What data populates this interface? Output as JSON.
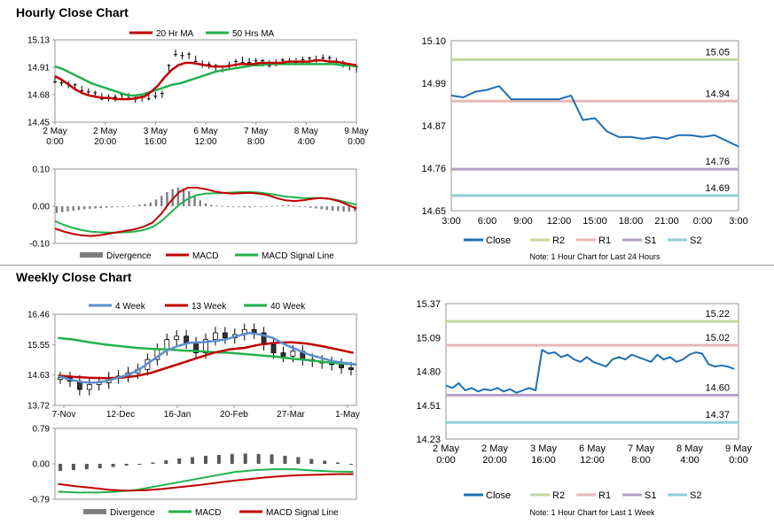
{
  "sections": {
    "hourly_title": "Hourly Close Chart",
    "weekly_title": "Weekly Close Chart"
  },
  "colors": {
    "ma20": "#c00000",
    "ma50": "#22b14c",
    "close": "#1f6fb2",
    "r2": "#c4d79b",
    "r1": "#e6b8b7",
    "s1": "#b1a0c7",
    "s2": "#92cddc",
    "wk4": "#5b8fd0",
    "wk13": "#c00000",
    "wk40": "#22b14c",
    "divergence": "#7f7f7f",
    "frame": "#969696"
  },
  "chart_data": [
    {
      "id": "hourly_price",
      "type": "line",
      "title": "Hourly Close Chart",
      "legend": [
        "20 Hr MA",
        "50 Hrs MA"
      ],
      "ylim": [
        14.45,
        15.13
      ],
      "yticks": [
        "15.13",
        "14.91",
        "14.68",
        "14.45"
      ],
      "xticks": [
        [
          "2 May",
          "0:00"
        ],
        [
          "2 May",
          "20:00"
        ],
        [
          "3 May",
          "16:00"
        ],
        [
          "6 May",
          "12:00"
        ],
        [
          "7 May",
          "8:00"
        ],
        [
          "8 May",
          "4:00"
        ],
        [
          "9 May",
          "0:00"
        ]
      ],
      "series": [
        {
          "name": "Close",
          "values": [
            14.8,
            14.78,
            14.76,
            14.74,
            14.72,
            14.7,
            14.68,
            14.66,
            14.65,
            14.65,
            14.66,
            14.66,
            14.64,
            14.65,
            14.66,
            14.67,
            14.68,
            14.9,
            15.02,
            15.0,
            15.0,
            14.97,
            14.93,
            14.92,
            14.9,
            14.89,
            14.92,
            14.94,
            14.96,
            14.95,
            14.95,
            14.94,
            14.93,
            14.94,
            14.95,
            14.95,
            14.95,
            14.96,
            14.96,
            14.97,
            14.98,
            14.97,
            14.95,
            14.93,
            14.91,
            14.89
          ]
        },
        {
          "name": "20 Hr MA",
          "values": [
            14.83,
            14.8,
            14.76,
            14.72,
            14.69,
            14.67,
            14.66,
            14.65,
            14.65,
            14.64,
            14.64,
            14.64,
            14.65,
            14.66,
            14.7,
            14.75,
            14.82,
            14.88,
            14.92,
            14.94,
            14.94,
            14.93,
            14.92,
            14.91,
            14.91,
            14.91,
            14.92,
            14.93,
            14.93,
            14.93,
            14.94,
            14.94,
            14.94,
            14.94,
            14.95,
            14.95,
            14.95,
            14.95,
            14.96,
            14.96,
            14.95,
            14.95,
            14.94,
            14.93,
            14.92
          ]
        },
        {
          "name": "50 Hrs MA",
          "values": [
            14.91,
            14.89,
            14.86,
            14.83,
            14.8,
            14.77,
            14.75,
            14.73,
            14.71,
            14.69,
            14.67,
            14.67,
            14.68,
            14.7,
            14.72,
            14.74,
            14.76,
            14.77,
            14.79,
            14.81,
            14.83,
            14.85,
            14.87,
            14.88,
            14.89,
            14.9,
            14.91,
            14.92,
            14.92,
            14.93,
            14.93,
            14.93,
            14.93,
            14.93,
            14.93,
            14.93,
            14.93,
            14.93,
            14.93,
            14.92,
            14.92,
            14.91
          ]
        }
      ]
    },
    {
      "id": "hourly_macd",
      "type": "line",
      "legend": [
        "Divergence",
        "MACD",
        "MACD Signal Line"
      ],
      "ylim": [
        -0.1,
        0.1
      ],
      "yticks": [
        "0.10",
        "0.00",
        "-0.10"
      ],
      "series": [
        {
          "name": "Divergence",
          "values": [
            -0.018,
            -0.016,
            -0.014,
            -0.012,
            -0.01,
            -0.008,
            -0.007,
            -0.006,
            -0.005,
            -0.004,
            -0.003,
            -0.002,
            -0.001,
            0.001,
            0.002,
            0.004,
            0.006,
            0.01,
            0.018,
            0.028,
            0.038,
            0.046,
            0.05,
            0.048,
            0.04,
            0.028,
            0.016,
            0.008,
            0.004,
            0.002,
            0.001,
            0.0,
            -0.001,
            -0.002,
            -0.003,
            -0.003,
            -0.002,
            -0.001,
            0.0,
            0.001,
            0.002,
            0.003,
            0.003,
            0.002,
            0.0,
            -0.002,
            -0.004,
            -0.006,
            -0.008,
            -0.01,
            -0.012,
            -0.013,
            -0.014,
            -0.014,
            -0.013
          ]
        },
        {
          "name": "MACD",
          "values": [
            -0.06,
            -0.068,
            -0.074,
            -0.078,
            -0.08,
            -0.078,
            -0.074,
            -0.07,
            -0.066,
            -0.062,
            -0.055,
            -0.044,
            -0.02,
            0.012,
            0.038,
            0.05,
            0.05,
            0.046,
            0.04,
            0.036,
            0.034,
            0.035,
            0.036,
            0.034,
            0.03,
            0.022,
            0.016,
            0.014,
            0.016,
            0.02,
            0.022,
            0.02,
            0.014,
            0.004,
            -0.006
          ]
        },
        {
          "name": "MACD Signal Line",
          "values": [
            -0.04,
            -0.05,
            -0.058,
            -0.064,
            -0.068,
            -0.07,
            -0.071,
            -0.071,
            -0.07,
            -0.068,
            -0.064,
            -0.056,
            -0.04,
            -0.018,
            0.004,
            0.02,
            0.03,
            0.034,
            0.035,
            0.036,
            0.037,
            0.038,
            0.038,
            0.037,
            0.034,
            0.03,
            0.026,
            0.024,
            0.022,
            0.022,
            0.022,
            0.02,
            0.016,
            0.01,
            0.004
          ]
        }
      ]
    },
    {
      "id": "hourly_pivot",
      "type": "line",
      "legend": [
        "Close",
        "R2",
        "R1",
        "S1",
        "S2"
      ],
      "note": "Note: 1 Hour Chart for Last 24 Hours",
      "ylim": [
        14.65,
        15.1
      ],
      "yticks": [
        "15.10",
        "14.99",
        "14.87",
        "14.76",
        "14.65"
      ],
      "xticks": [
        "3:00",
        "6:00",
        "9:00",
        "12:00",
        "15:00",
        "18:00",
        "21:00",
        "0:00",
        "3:00"
      ],
      "levels": [
        {
          "name": "R2",
          "value": 15.05,
          "label": "15.05"
        },
        {
          "name": "R1",
          "value": 14.94,
          "label": "14.94"
        },
        {
          "name": "S1",
          "value": 14.76,
          "label": "14.76"
        },
        {
          "name": "S2",
          "value": 14.69,
          "label": "14.69"
        }
      ],
      "series": [
        {
          "name": "Close",
          "values": [
            14.955,
            14.95,
            14.965,
            14.97,
            14.98,
            14.945,
            14.945,
            14.945,
            14.945,
            14.945,
            14.955,
            14.89,
            14.895,
            14.86,
            14.845,
            14.845,
            14.84,
            14.845,
            14.84,
            14.85,
            14.85,
            14.845,
            14.85,
            14.835,
            14.82
          ]
        }
      ]
    },
    {
      "id": "weekly_price",
      "type": "line",
      "title": "Weekly Close Chart",
      "legend": [
        "4 Week",
        "13 Week",
        "40 Week"
      ],
      "ylim": [
        13.72,
        16.46
      ],
      "yticks": [
        "16.46",
        "15.55",
        "14.63",
        "13.72"
      ],
      "xticks": [
        "7-Nov",
        "12-Dec",
        "16-Jan",
        "20-Feb",
        "27-Mar",
        "1-May"
      ],
      "series": [
        {
          "name": "Close",
          "values": [
            14.55,
            14.45,
            14.2,
            14.35,
            14.4,
            14.55,
            14.6,
            14.7,
            14.8,
            15.1,
            15.4,
            15.7,
            15.8,
            15.6,
            15.3,
            15.7,
            15.9,
            15.75,
            15.85,
            16.0,
            15.9,
            15.55,
            15.3,
            15.2,
            15.35,
            15.1,
            15.05,
            15.0,
            14.95,
            14.85,
            14.8
          ]
        },
        {
          "name": "4 Week",
          "values": [
            14.6,
            14.5,
            14.42,
            14.4,
            14.45,
            14.55,
            14.65,
            14.85,
            15.1,
            15.35,
            15.5,
            15.6,
            15.62,
            15.65,
            15.7,
            15.8,
            15.9,
            15.85,
            15.75,
            15.55,
            15.4,
            15.25,
            15.15,
            15.05,
            15.0,
            14.95
          ]
        },
        {
          "name": "13 Week",
          "values": [
            14.62,
            14.58,
            14.55,
            14.54,
            14.55,
            14.6,
            14.7,
            14.85,
            15.0,
            15.15,
            15.3,
            15.4,
            15.45,
            15.55,
            15.6,
            15.62,
            15.58,
            15.5,
            15.4,
            15.3
          ]
        },
        {
          "name": "40 Week",
          "values": [
            15.75,
            15.7,
            15.62,
            15.55,
            15.5,
            15.45,
            15.42,
            15.4,
            15.37,
            15.35,
            15.32,
            15.3,
            15.26,
            15.22,
            15.18,
            15.12,
            15.08,
            15.02,
            14.98,
            14.95
          ]
        }
      ]
    },
    {
      "id": "weekly_macd",
      "type": "line",
      "legend": [
        "Divergence",
        "MACD",
        "MACD Signal Line"
      ],
      "ylim": [
        -0.79,
        0.79
      ],
      "yticks": [
        "0.79",
        "0.00",
        "-0.79"
      ],
      "series": [
        {
          "name": "Divergence",
          "values": [
            -0.16,
            -0.14,
            -0.12,
            -0.1,
            -0.07,
            -0.04,
            -0.02,
            0.03,
            0.08,
            0.12,
            0.15,
            0.18,
            0.2,
            0.22,
            0.23,
            0.22,
            0.21,
            0.18,
            0.15,
            0.11,
            0.07,
            0.03,
            -0.01
          ]
        },
        {
          "name": "MACD",
          "values": [
            -0.62,
            -0.64,
            -0.64,
            -0.62,
            -0.58,
            -0.5,
            -0.42,
            -0.34,
            -0.26,
            -0.18,
            -0.14,
            -0.12,
            -0.12,
            -0.15,
            -0.17,
            -0.18
          ]
        },
        {
          "name": "MACD Signal Line",
          "values": [
            -0.45,
            -0.5,
            -0.54,
            -0.58,
            -0.6,
            -0.59,
            -0.56,
            -0.52,
            -0.48,
            -0.43,
            -0.38,
            -0.34,
            -0.3,
            -0.27,
            -0.25,
            -0.24,
            -0.23,
            -0.23
          ]
        }
      ]
    },
    {
      "id": "weekly_pivot",
      "type": "line",
      "legend": [
        "Close",
        "R2",
        "R1",
        "S1",
        "S2"
      ],
      "note": "Note: 1 Hour Chart for Last 1 Week",
      "ylim": [
        14.23,
        15.37
      ],
      "yticks": [
        "15.37",
        "15.09",
        "14.80",
        "14.51",
        "14.23"
      ],
      "xticks": [
        [
          "2 May",
          "0:00"
        ],
        [
          "2 May",
          "20:00"
        ],
        [
          "3 May",
          "16:00"
        ],
        [
          "6 May",
          "12:00"
        ],
        [
          "7 May",
          "8:00"
        ],
        [
          "8 May",
          "4:00"
        ],
        [
          "9 May",
          "0:00"
        ]
      ],
      "levels": [
        {
          "name": "R2",
          "value": 15.22,
          "label": "15.22"
        },
        {
          "name": "R1",
          "value": 15.02,
          "label": "15.02"
        },
        {
          "name": "S1",
          "value": 14.6,
          "label": "14.60"
        },
        {
          "name": "S2",
          "value": 14.37,
          "label": "14.37"
        }
      ],
      "series": [
        {
          "name": "Close",
          "values": [
            14.68,
            14.66,
            14.7,
            14.64,
            14.66,
            14.63,
            14.65,
            14.64,
            14.66,
            14.63,
            14.65,
            14.62,
            14.64,
            14.66,
            14.64,
            14.98,
            14.95,
            14.96,
            14.92,
            14.94,
            14.9,
            14.88,
            14.92,
            14.88,
            14.86,
            14.84,
            14.9,
            14.92,
            14.9,
            14.94,
            14.92,
            14.9,
            14.88,
            14.94,
            14.9,
            14.92,
            14.88,
            14.9,
            14.94,
            14.96,
            14.95,
            14.86,
            14.84,
            14.85,
            14.84,
            14.82
          ]
        }
      ]
    }
  ]
}
